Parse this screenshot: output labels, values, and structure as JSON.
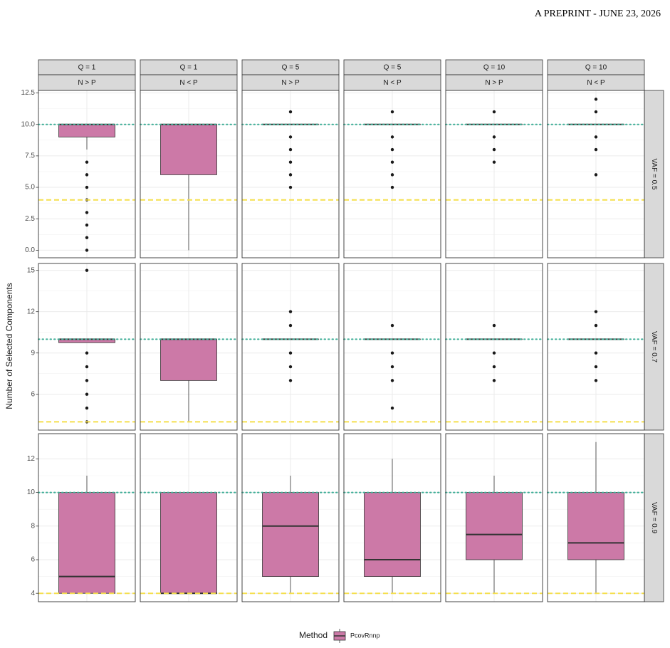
{
  "header": {
    "text": "A PREPRINT - JUNE 23, 2026"
  },
  "chart_data": {
    "type": "box",
    "y_label": "Number of Selected Components",
    "legend_title": "Method",
    "series": [
      {
        "name": "PcovRnnp",
        "color": "#cc79a7"
      }
    ],
    "grid": true,
    "reference_lines": [
      {
        "value": 10,
        "color": "#3fae97",
        "style": "dotted"
      },
      {
        "value": 4,
        "color": "#f5df4d",
        "style": "dashed"
      }
    ],
    "columns": [
      {
        "q": "Q = 1",
        "n": "N > P"
      },
      {
        "q": "Q = 1",
        "n": "N < P"
      },
      {
        "q": "Q = 5",
        "n": "N > P"
      },
      {
        "q": "Q = 5",
        "n": "N < P"
      },
      {
        "q": "Q = 10",
        "n": "N > P"
      },
      {
        "q": "Q = 10",
        "n": "N < P"
      }
    ],
    "rows": [
      {
        "label": "VAF = 0.5",
        "ylim": [
          -0.6,
          12.7
        ],
        "yticks": [
          {
            "value": 0,
            "label": "0.0"
          },
          2.5,
          {
            "value": 5,
            "label": "5.0"
          },
          7.5,
          {
            "value": 10,
            "label": "10.0"
          },
          12.5
        ],
        "panels": [
          {
            "min": 8,
            "q1": 9,
            "median": 10,
            "q3": 10,
            "max": 10,
            "outliers": [
              7,
              6,
              5,
              4,
              3,
              2,
              1,
              0
            ]
          },
          {
            "min": 0,
            "q1": 6,
            "median": 10,
            "q3": 10,
            "max": 10,
            "outliers": []
          },
          {
            "min": 10,
            "q1": 10,
            "median": 10,
            "q3": 10,
            "max": 10,
            "outliers": [
              11,
              9,
              8,
              7,
              6,
              5
            ]
          },
          {
            "min": 10,
            "q1": 10,
            "median": 10,
            "q3": 10,
            "max": 10,
            "outliers": [
              11,
              9,
              8,
              7,
              6,
              5
            ]
          },
          {
            "min": 10,
            "q1": 10,
            "median": 10,
            "q3": 10,
            "max": 10,
            "outliers": [
              11,
              9,
              8,
              7
            ]
          },
          {
            "min": 10,
            "q1": 10,
            "median": 10,
            "q3": 10,
            "max": 10,
            "outliers": [
              12,
              11,
              9,
              8,
              6
            ]
          }
        ]
      },
      {
        "label": "VAF = 0.7",
        "ylim": [
          3.4,
          15.5
        ],
        "yticks": [
          6,
          9,
          12,
          15
        ],
        "panels": [
          {
            "min": 9.75,
            "q1": 9.75,
            "median": 10,
            "q3": 10,
            "max": 10,
            "outliers": [
              15,
              9,
              8,
              7,
              6,
              5,
              4
            ]
          },
          {
            "min": 4,
            "q1": 7,
            "median": 10,
            "q3": 10,
            "max": 10,
            "outliers": []
          },
          {
            "min": 10,
            "q1": 10,
            "median": 10,
            "q3": 10,
            "max": 10,
            "outliers": [
              12,
              11,
              9,
              8,
              7
            ]
          },
          {
            "min": 10,
            "q1": 10,
            "median": 10,
            "q3": 10,
            "max": 10,
            "outliers": [
              11,
              9,
              8,
              7,
              5
            ]
          },
          {
            "min": 10,
            "q1": 10,
            "median": 10,
            "q3": 10,
            "max": 10,
            "outliers": [
              11,
              9,
              8,
              7
            ]
          },
          {
            "min": 10,
            "q1": 10,
            "median": 10,
            "q3": 10,
            "max": 10,
            "outliers": [
              12,
              11,
              9,
              8,
              7
            ]
          }
        ]
      },
      {
        "label": "VAF = 0.9",
        "ylim": [
          3.5,
          13.5
        ],
        "yticks": [
          4,
          6,
          8,
          10,
          12
        ],
        "panels": [
          {
            "min": 4,
            "q1": 4,
            "median": 5,
            "q3": 10,
            "max": 11,
            "outliers": []
          },
          {
            "min": 4,
            "q1": 4,
            "median": 4,
            "q3": 10,
            "max": 10,
            "outliers": []
          },
          {
            "min": 4,
            "q1": 5,
            "median": 8,
            "q3": 10,
            "max": 11,
            "outliers": []
          },
          {
            "min": 4,
            "q1": 5,
            "median": 6,
            "q3": 10,
            "max": 12,
            "outliers": []
          },
          {
            "min": 4,
            "q1": 6,
            "median": 7.5,
            "q3": 10,
            "max": 11,
            "outliers": []
          },
          {
            "min": 4,
            "q1": 6,
            "median": 7,
            "q3": 10,
            "max": 13,
            "outliers": []
          }
        ]
      }
    ]
  }
}
